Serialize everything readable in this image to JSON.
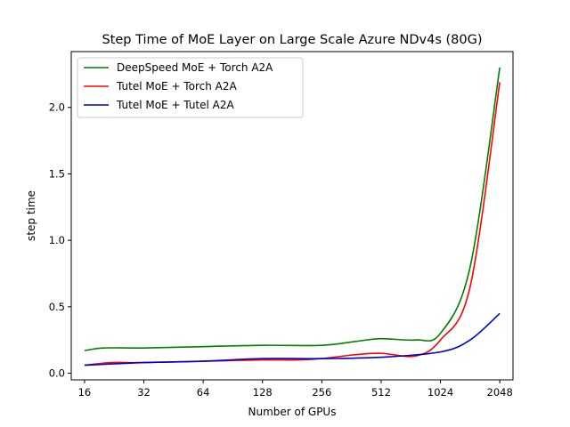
{
  "chart_data": {
    "type": "line",
    "title": "Step Time of MoE Layer on Large Scale Azure NDv4s (80G)",
    "xlabel": "Number of GPUs",
    "ylabel": "step time",
    "x_scale": "log2",
    "xlim": [
      13.7,
      2390
    ],
    "ylim": [
      -0.05,
      2.42
    ],
    "xticks": [
      16,
      32,
      64,
      128,
      256,
      512,
      1024,
      2048
    ],
    "xtick_labels": [
      "16",
      "32",
      "64",
      "128",
      "256",
      "512",
      "1024",
      "2048"
    ],
    "yticks": [
      0.0,
      0.5,
      1.0,
      1.5,
      2.0
    ],
    "ytick_labels": [
      "0.0",
      "0.5",
      "1.0",
      "1.5",
      "2.0"
    ],
    "grid": false,
    "legend_position": "top-left",
    "series": [
      {
        "name": "DeepSpeed MoE + Torch A2A",
        "color": "#008000",
        "x": [
          16,
          20,
          32,
          64,
          128,
          256,
          384,
          512,
          768,
          1024,
          1448,
          2048
        ],
        "values": [
          0.17,
          0.19,
          0.19,
          0.2,
          0.21,
          0.21,
          0.24,
          0.26,
          0.25,
          0.3,
          0.8,
          2.3
        ]
      },
      {
        "name": "Tutel MoE + Torch A2A",
        "color": "#ff0000",
        "x": [
          16,
          22,
          32,
          64,
          128,
          192,
          256,
          384,
          512,
          768,
          1024,
          1448,
          2048
        ],
        "values": [
          0.06,
          0.08,
          0.08,
          0.09,
          0.1,
          0.1,
          0.11,
          0.14,
          0.15,
          0.13,
          0.25,
          0.65,
          2.19
        ]
      },
      {
        "name": "Tutel MoE + Tutel A2A",
        "color": "#0000cc",
        "x": [
          16,
          32,
          64,
          128,
          256,
          512,
          1024,
          1448,
          2048
        ],
        "values": [
          0.06,
          0.08,
          0.09,
          0.11,
          0.11,
          0.12,
          0.16,
          0.25,
          0.45
        ]
      }
    ]
  }
}
